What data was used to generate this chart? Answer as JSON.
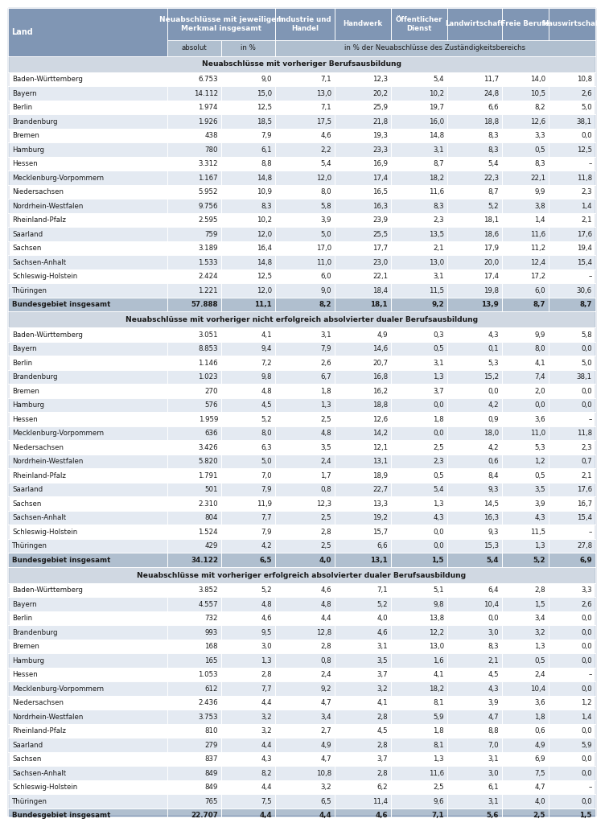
{
  "section1_title": "Neuabschlüsse mit vorheriger Berufsausbildung",
  "section2_title": "Neuabschlüsse mit vorheriger nicht erfolgreich absolvierter dualer Berufsausbildung",
  "section3_title": "Neuabschlüsse mit vorheriger erfolgreich absolvierter dualer Berufsausbildung",
  "section1": [
    [
      "Baden-Württemberg",
      "6.753",
      "9,0",
      "7,1",
      "12,3",
      "5,4",
      "11,7",
      "14,0",
      "10,8"
    ],
    [
      "Bayern",
      "14.112",
      "15,0",
      "13,0",
      "20,2",
      "10,2",
      "24,8",
      "10,5",
      "2,6"
    ],
    [
      "Berlin",
      "1.974",
      "12,5",
      "7,1",
      "25,9",
      "19,7",
      "6,6",
      "8,2",
      "5,0"
    ],
    [
      "Brandenburg",
      "1.926",
      "18,5",
      "17,5",
      "21,8",
      "16,0",
      "18,8",
      "12,6",
      "38,1"
    ],
    [
      "Bremen",
      "438",
      "7,9",
      "4,6",
      "19,3",
      "14,8",
      "8,3",
      "3,3",
      "0,0"
    ],
    [
      "Hamburg",
      "780",
      "6,1",
      "2,2",
      "23,3",
      "3,1",
      "8,3",
      "0,5",
      "12,5"
    ],
    [
      "Hessen",
      "3.312",
      "8,8",
      "5,4",
      "16,9",
      "8,7",
      "5,4",
      "8,3",
      "–"
    ],
    [
      "Mecklenburg-Vorpommern",
      "1.167",
      "14,8",
      "12,0",
      "17,4",
      "18,2",
      "22,3",
      "22,1",
      "11,8"
    ],
    [
      "Niedersachsen",
      "5.952",
      "10,9",
      "8,0",
      "16,5",
      "11,6",
      "8,7",
      "9,9",
      "2,3"
    ],
    [
      "Nordrhein-Westfalen",
      "9.756",
      "8,3",
      "5,8",
      "16,3",
      "8,3",
      "5,2",
      "3,8",
      "1,4"
    ],
    [
      "Rheinland-Pfalz",
      "2.595",
      "10,2",
      "3,9",
      "23,9",
      "2,3",
      "18,1",
      "1,4",
      "2,1"
    ],
    [
      "Saarland",
      "759",
      "12,0",
      "5,0",
      "25,5",
      "13,5",
      "18,6",
      "11,6",
      "17,6"
    ],
    [
      "Sachsen",
      "3.189",
      "16,4",
      "17,0",
      "17,7",
      "2,1",
      "17,9",
      "11,2",
      "19,4"
    ],
    [
      "Sachsen-Anhalt",
      "1.533",
      "14,8",
      "11,0",
      "23,0",
      "13,0",
      "20,0",
      "12,4",
      "15,4"
    ],
    [
      "Schleswig-Holstein",
      "2.424",
      "12,5",
      "6,0",
      "22,1",
      "3,1",
      "17,4",
      "17,2",
      "–"
    ],
    [
      "Thüringen",
      "1.221",
      "12,0",
      "9,0",
      "18,4",
      "11,5",
      "19,8",
      "6,0",
      "30,6"
    ],
    [
      "Bundesgebiet insgesamt",
      "57.888",
      "11,1",
      "8,2",
      "18,1",
      "9,2",
      "13,9",
      "8,7",
      "8,7"
    ]
  ],
  "section2": [
    [
      "Baden-Württemberg",
      "3.051",
      "4,1",
      "3,1",
      "4,9",
      "0,3",
      "4,3",
      "9,9",
      "5,8"
    ],
    [
      "Bayern",
      "8.853",
      "9,4",
      "7,9",
      "14,6",
      "0,5",
      "0,1",
      "8,0",
      "0,0"
    ],
    [
      "Berlin",
      "1.146",
      "7,2",
      "2,6",
      "20,7",
      "3,1",
      "5,3",
      "4,1",
      "5,0"
    ],
    [
      "Brandenburg",
      "1.023",
      "9,8",
      "6,7",
      "16,8",
      "1,3",
      "15,2",
      "7,4",
      "38,1"
    ],
    [
      "Bremen",
      "270",
      "4,8",
      "1,8",
      "16,2",
      "3,7",
      "0,0",
      "2,0",
      "0,0"
    ],
    [
      "Hamburg",
      "576",
      "4,5",
      "1,3",
      "18,8",
      "0,0",
      "4,2",
      "0,0",
      "0,0"
    ],
    [
      "Hessen",
      "1.959",
      "5,2",
      "2,5",
      "12,6",
      "1,8",
      "0,9",
      "3,6",
      "–"
    ],
    [
      "Mecklenburg-Vorpommern",
      "636",
      "8,0",
      "4,8",
      "14,2",
      "0,0",
      "18,0",
      "11,0",
      "11,8"
    ],
    [
      "Niedersachsen",
      "3.426",
      "6,3",
      "3,5",
      "12,1",
      "2,5",
      "4,2",
      "5,3",
      "2,3"
    ],
    [
      "Nordrhein-Westfalen",
      "5.820",
      "5,0",
      "2,4",
      "13,1",
      "2,3",
      "0,6",
      "1,2",
      "0,7"
    ],
    [
      "Rheinland-Pfalz",
      "1.791",
      "7,0",
      "1,7",
      "18,9",
      "0,5",
      "8,4",
      "0,5",
      "2,1"
    ],
    [
      "Saarland",
      "501",
      "7,9",
      "0,8",
      "22,7",
      "5,4",
      "9,3",
      "3,5",
      "17,6"
    ],
    [
      "Sachsen",
      "2.310",
      "11,9",
      "12,3",
      "13,3",
      "1,3",
      "14,5",
      "3,9",
      "16,7"
    ],
    [
      "Sachsen-Anhalt",
      "804",
      "7,7",
      "2,5",
      "19,2",
      "4,3",
      "16,3",
      "4,3",
      "15,4"
    ],
    [
      "Schleswig-Holstein",
      "1.524",
      "7,9",
      "2,8",
      "15,7",
      "0,0",
      "9,3",
      "11,5",
      "–"
    ],
    [
      "Thüringen",
      "429",
      "4,2",
      "2,5",
      "6,6",
      "0,0",
      "15,3",
      "1,3",
      "27,8"
    ],
    [
      "Bundesgebiet insgesamt",
      "34.122",
      "6,5",
      "4,0",
      "13,1",
      "1,5",
      "5,4",
      "5,2",
      "6,9"
    ]
  ],
  "section3": [
    [
      "Baden-Württemberg",
      "3.852",
      "5,2",
      "4,6",
      "7,1",
      "5,1",
      "6,4",
      "2,8",
      "3,3"
    ],
    [
      "Bayern",
      "4.557",
      "4,8",
      "4,8",
      "5,2",
      "9,8",
      "10,4",
      "1,5",
      "2,6"
    ],
    [
      "Berlin",
      "732",
      "4,6",
      "4,4",
      "4,0",
      "13,8",
      "0,0",
      "3,4",
      "0,0"
    ],
    [
      "Brandenburg",
      "993",
      "9,5",
      "12,8",
      "4,6",
      "12,2",
      "3,0",
      "3,2",
      "0,0"
    ],
    [
      "Bremen",
      "168",
      "3,0",
      "2,8",
      "3,1",
      "13,0",
      "8,3",
      "1,3",
      "0,0"
    ],
    [
      "Hamburg",
      "165",
      "1,3",
      "0,8",
      "3,5",
      "1,6",
      "2,1",
      "0,5",
      "0,0"
    ],
    [
      "Hessen",
      "1.053",
      "2,8",
      "2,4",
      "3,7",
      "4,1",
      "4,5",
      "2,4",
      "–"
    ],
    [
      "Mecklenburg-Vorpommern",
      "612",
      "7,7",
      "9,2",
      "3,2",
      "18,2",
      "4,3",
      "10,4",
      "0,0"
    ],
    [
      "Niedersachsen",
      "2.436",
      "4,4",
      "4,7",
      "4,1",
      "8,1",
      "3,9",
      "3,6",
      "1,2"
    ],
    [
      "Nordrhein-Westfalen",
      "3.753",
      "3,2",
      "3,4",
      "2,8",
      "5,9",
      "4,7",
      "1,8",
      "1,4"
    ],
    [
      "Rheinland-Pfalz",
      "810",
      "3,2",
      "2,7",
      "4,5",
      "1,8",
      "8,8",
      "0,6",
      "0,0"
    ],
    [
      "Saarland",
      "279",
      "4,4",
      "4,9",
      "2,8",
      "8,1",
      "7,0",
      "4,9",
      "5,9"
    ],
    [
      "Sachsen",
      "837",
      "4,3",
      "4,7",
      "3,7",
      "1,3",
      "3,1",
      "6,9",
      "0,0"
    ],
    [
      "Sachsen-Anhalt",
      "849",
      "8,2",
      "10,8",
      "2,8",
      "11,6",
      "3,0",
      "7,5",
      "0,0"
    ],
    [
      "Schleswig-Holstein",
      "849",
      "4,4",
      "3,2",
      "6,2",
      "2,5",
      "6,1",
      "4,7",
      "–"
    ],
    [
      "Thüringen",
      "765",
      "7,5",
      "6,5",
      "11,4",
      "9,6",
      "3,1",
      "4,0",
      "0,0"
    ],
    [
      "Bundesgebiet insgesamt",
      "22.707",
      "4,4",
      "4,4",
      "4,6",
      "7,1",
      "5,6",
      "2,5",
      "1,5"
    ]
  ],
  "col_aligns": [
    "left",
    "right",
    "right",
    "right",
    "right",
    "right",
    "right",
    "right",
    "right"
  ],
  "header_dark": "#8096b4",
  "header_mid": "#b0bfcf",
  "section_bg": "#d0d8e2",
  "row_odd": "#ffffff",
  "row_even": "#e4eaf2",
  "total_bg": "#b0bfcf",
  "white": "#ffffff",
  "black": "#1a1a1a"
}
